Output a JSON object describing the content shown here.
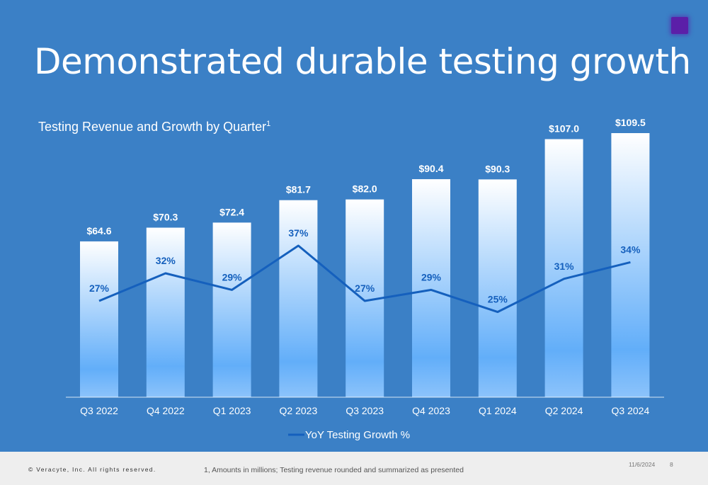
{
  "slide": {
    "title": "Demonstrated durable testing growth",
    "subtitle": "Testing Revenue and Growth by Quarter",
    "subtitle_footnote_marker": "1"
  },
  "colors": {
    "background": "#3b80c6",
    "bar_top": "#ffffff",
    "bar_bottom": "#62aef9",
    "line": "#1560bd",
    "growth_label": "#1560bd",
    "value_label": "#ffffff"
  },
  "chart_data": {
    "type": "bar",
    "title": "Testing Revenue and Growth by Quarter",
    "categories": [
      "Q3 2022",
      "Q4 2022",
      "Q1 2023",
      "Q2 2023",
      "Q3 2023",
      "Q4 2023",
      "Q1 2024",
      "Q2 2024",
      "Q3 2024"
    ],
    "series": [
      {
        "kind": "bar",
        "values": [
          64.6,
          70.3,
          72.4,
          81.7,
          82.0,
          90.4,
          90.3,
          107.0,
          109.5
        ],
        "labels": [
          "$64.6",
          "$70.3",
          "$72.4",
          "$81.7",
          "$82.0",
          "$90.4",
          "$90.3",
          "$107.0",
          "$109.5"
        ]
      },
      {
        "kind": "line",
        "name": "YoY Testing Growth %",
        "values": [
          27,
          32,
          29,
          37,
          27,
          29,
          25,
          31,
          34
        ],
        "labels": [
          "27%",
          "32%",
          "29%",
          "37%",
          "27%",
          "29%",
          "25%",
          "31%",
          "34%"
        ]
      }
    ],
    "legend": "bottom",
    "grid": false
  },
  "footer": {
    "copyright": "© Veracyte, Inc.  All rights reserved.",
    "footnote": "1, Amounts in millions; Testing revenue rounded and summarized as presented",
    "date": "11/6/2024",
    "page": "8"
  }
}
